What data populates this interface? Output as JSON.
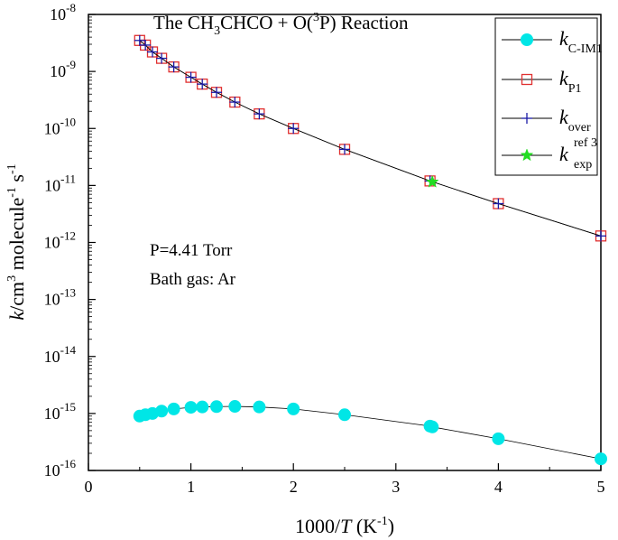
{
  "chart_data": {
    "type": "scatter",
    "title": {
      "prefix": "The CH",
      "sub1": "3",
      "middle": "CHCO + O(",
      "sup": "3",
      "suffix": "P) Reaction"
    },
    "xlabel": {
      "prefix": "1000/",
      "italic": "T",
      "unit_open": " (K",
      "unit_sup": "-1",
      "unit_close": ")"
    },
    "ylabel": {
      "italic": "k",
      "part1": "/cm",
      "sup1": "3",
      "part2": " molecule",
      "sup2": "-1",
      "part3": " s",
      "sup3": "-1"
    },
    "xlim": [
      0,
      5
    ],
    "ylim_log10": [
      -16,
      -8
    ],
    "yscale": "log",
    "x_ticks": [
      0,
      1,
      2,
      3,
      4,
      5
    ],
    "x_tick_labels": [
      "0",
      "1",
      "2",
      "3",
      "4",
      "5"
    ],
    "y_ticks": [
      {
        "base": "10",
        "exp": "-16",
        "value": -16
      },
      {
        "base": "10",
        "exp": "-15",
        "value": -15
      },
      {
        "base": "10",
        "exp": "-14",
        "value": -14
      },
      {
        "base": "10",
        "exp": "-13",
        "value": -13
      },
      {
        "base": "10",
        "exp": "-12",
        "value": -12
      },
      {
        "base": "10",
        "exp": "-11",
        "value": -11
      },
      {
        "base": "10",
        "exp": "-10",
        "value": -10
      },
      {
        "base": "10",
        "exp": "-9",
        "value": -9
      },
      {
        "base": "10",
        "exp": "-8",
        "value": -8
      }
    ],
    "annotations": [
      "P=4.41 Torr",
      "Bath gas: Ar"
    ],
    "legend_position": "top-right",
    "series": [
      {
        "name": {
          "main": "k",
          "sub": "C-IM1",
          "sup": ""
        },
        "marker": "filled-circle",
        "color": "#00e6e6",
        "line_color": "#000000",
        "x": [
          0.5,
          0.556,
          0.625,
          0.714,
          0.833,
          1.0,
          1.111,
          1.25,
          1.429,
          1.667,
          2.0,
          2.5,
          3.333,
          3.356,
          4.0,
          5.0
        ],
        "y": [
          9e-16,
          9.5e-16,
          1e-15,
          1.1e-15,
          1.2e-15,
          1.28e-15,
          1.3e-15,
          1.32e-15,
          1.33e-15,
          1.3e-15,
          1.2e-15,
          9.5e-16,
          6e-16,
          5.8e-16,
          3.6e-16,
          1.6e-16
        ]
      },
      {
        "name": {
          "main": "k",
          "sub": "P1",
          "sup": ""
        },
        "marker": "open-square",
        "color": "#e03030",
        "line_color": "#000000",
        "x": [
          0.5,
          0.556,
          0.625,
          0.714,
          0.833,
          1.0,
          1.111,
          1.25,
          1.429,
          1.667,
          2.0,
          2.5,
          3.333,
          4.0,
          5.0
        ],
        "y": [
          3.5e-09,
          2.9e-09,
          2.2e-09,
          1.7e-09,
          1.2e-09,
          7.9e-10,
          6e-10,
          4.3e-10,
          2.9e-10,
          1.8e-10,
          1e-10,
          4.3e-11,
          1.2e-11,
          4.8e-12,
          1.3e-12
        ]
      },
      {
        "name": {
          "main": "k",
          "sub": "over",
          "sup": ""
        },
        "marker": "plus",
        "color": "#1a1aa6",
        "line_color": "#000000",
        "x": [
          0.5,
          0.556,
          0.625,
          0.714,
          0.833,
          1.0,
          1.111,
          1.25,
          1.429,
          1.667,
          2.0,
          2.5,
          3.333,
          4.0,
          5.0
        ],
        "y": [
          3.5e-09,
          2.9e-09,
          2.2e-09,
          1.7e-09,
          1.2e-09,
          7.9e-10,
          6e-10,
          4.3e-10,
          2.9e-10,
          1.8e-10,
          1e-10,
          4.3e-11,
          1.2e-11,
          4.8e-12,
          1.3e-12
        ]
      },
      {
        "name": {
          "main": "k",
          "sub": "exp",
          "sup": "ref 3"
        },
        "marker": "star",
        "color": "#22dd22",
        "line_color": "#000000",
        "x": [
          3.356
        ],
        "y": [
          1.15e-11
        ]
      }
    ]
  }
}
